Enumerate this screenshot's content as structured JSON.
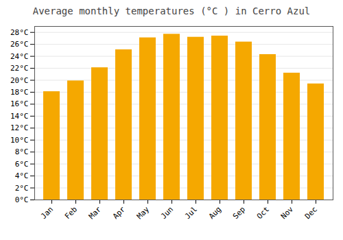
{
  "chart_data": {
    "type": "bar",
    "title": "Average monthly temperatures (°C ) in Cerro Azul",
    "categories": [
      "Jan",
      "Feb",
      "Mar",
      "Apr",
      "May",
      "Jun",
      "Jul",
      "Aug",
      "Sep",
      "Oct",
      "Nov",
      "Dec"
    ],
    "values": [
      18.1,
      19.9,
      22.1,
      25.1,
      27.1,
      27.7,
      27.2,
      27.4,
      26.4,
      24.3,
      21.2,
      19.4
    ],
    "color": "#F5A800",
    "ylim": [
      0,
      29
    ],
    "yticks": [
      {
        "value": 0,
        "label": "0°C"
      },
      {
        "value": 2,
        "label": "2°C"
      },
      {
        "value": 4,
        "label": "4°C"
      },
      {
        "value": 6,
        "label": "6°C"
      },
      {
        "value": 8,
        "label": "8°C"
      },
      {
        "value": 10,
        "label": "10°C"
      },
      {
        "value": 12,
        "label": "12°C"
      },
      {
        "value": 14,
        "label": "14°C"
      },
      {
        "value": 16,
        "label": "16°C"
      },
      {
        "value": 18,
        "label": "18°C"
      },
      {
        "value": 20,
        "label": "20°C"
      },
      {
        "value": 22,
        "label": "22°C"
      },
      {
        "value": 24,
        "label": "24°C"
      },
      {
        "value": 26,
        "label": "26°C"
      },
      {
        "value": 28,
        "label": "28°C"
      }
    ],
    "grid": true
  }
}
